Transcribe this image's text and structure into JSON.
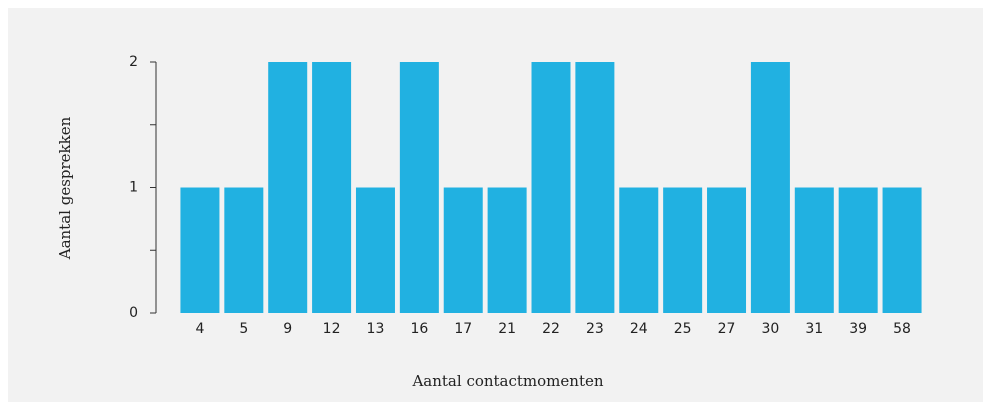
{
  "chart_data": {
    "type": "bar",
    "x_label": "Aantal contactmomenten",
    "y_label": "Aantal gesprekken",
    "categories": [
      "4",
      "5",
      "9",
      "12",
      "13",
      "16",
      "17",
      "21",
      "22",
      "23",
      "24",
      "25",
      "27",
      "30",
      "31",
      "39",
      "58"
    ],
    "values": [
      1,
      1,
      2,
      2,
      1,
      2,
      1,
      1,
      2,
      2,
      1,
      1,
      1,
      2,
      1,
      1,
      1
    ],
    "color": "#21b1e1",
    "ylim": [
      0,
      2
    ],
    "yticks": [
      0,
      1,
      2
    ],
    "yminor_ticks": [
      0.5,
      1.5
    ],
    "grid": false
  }
}
